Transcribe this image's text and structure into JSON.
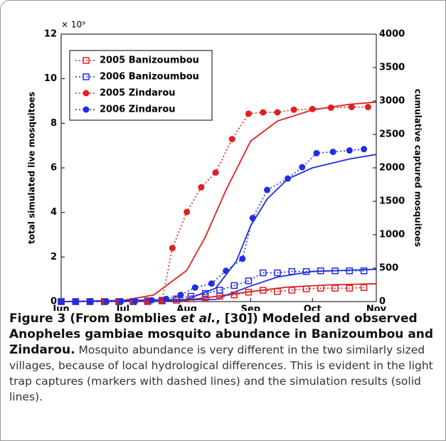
{
  "chart_data": {
    "type": "line",
    "y_multiplier": "× 10⁹",
    "ylabel": "total simulated live mosquitoes",
    "y2label": "cumulative captured mosquitoes",
    "xlim": [
      0,
      153
    ],
    "xticks": [
      {
        "value": 0,
        "label": "Jun"
      },
      {
        "value": 30,
        "label": "Jul"
      },
      {
        "value": 61,
        "label": "Aug"
      },
      {
        "value": 92,
        "label": "Sep"
      },
      {
        "value": 122,
        "label": "Oct"
      },
      {
        "value": 153,
        "label": "Nov"
      }
    ],
    "ylim": [
      0,
      12
    ],
    "yticks": [
      0,
      2,
      4,
      6,
      8,
      10,
      12
    ],
    "y2lim": [
      0,
      4000
    ],
    "y2ticks": [
      0,
      500,
      1000,
      1500,
      2000,
      2500,
      3000,
      3500,
      4000
    ],
    "legend": "upper left",
    "series": [
      {
        "name": "2005 Banizoumbou",
        "color": "#e02020",
        "marker": "square",
        "axis": "y2",
        "x": [
          0,
          7,
          14,
          21,
          28,
          35,
          42,
          49,
          56,
          63,
          70,
          77,
          84,
          91,
          98,
          105,
          112,
          119,
          126,
          133,
          140,
          147
        ],
        "values": [
          0,
          0,
          0,
          0,
          0,
          0,
          0,
          10,
          20,
          40,
          60,
          80,
          100,
          140,
          170,
          150,
          170,
          190,
          200,
          200,
          200,
          210
        ]
      },
      {
        "name": "2006 Banizoumbou",
        "color": "#1f2fe0",
        "marker": "square",
        "axis": "y2",
        "x": [
          0,
          7,
          14,
          21,
          28,
          35,
          42,
          49,
          56,
          63,
          70,
          77,
          84,
          91,
          98,
          105,
          112,
          119,
          126,
          133,
          140,
          147
        ],
        "values": [
          0,
          0,
          0,
          0,
          0,
          0,
          10,
          20,
          40,
          80,
          120,
          170,
          240,
          310,
          430,
          430,
          450,
          450,
          460,
          460,
          460,
          460
        ]
      },
      {
        "name": "2005 Zindarou",
        "color": "#e02020",
        "marker": "dot",
        "axis": "y2",
        "x": [
          0,
          7,
          14,
          21,
          28,
          35,
          42,
          49,
          54,
          61,
          68,
          75,
          83,
          91,
          98,
          105,
          113,
          122,
          131,
          141,
          149
        ],
        "values": [
          0,
          0,
          0,
          0,
          0,
          0,
          0,
          20,
          800,
          1340,
          1710,
          1930,
          2430,
          2810,
          2830,
          2830,
          2870,
          2880,
          2900,
          2910,
          2910
        ]
      },
      {
        "name": "2006 Zindarou",
        "color": "#1f2fe0",
        "marker": "dot",
        "axis": "y2",
        "x": [
          0,
          7,
          14,
          22,
          29,
          36,
          44,
          51,
          58,
          65,
          73,
          80,
          88,
          93,
          100,
          110,
          117,
          124,
          132,
          140,
          147
        ],
        "values": [
          0,
          0,
          0,
          0,
          0,
          10,
          20,
          40,
          100,
          210,
          270,
          460,
          640,
          1250,
          1670,
          1840,
          2010,
          2220,
          2240,
          2260,
          2280
        ]
      }
    ],
    "model_series": [
      {
        "color": "#e02020",
        "x": [
          0,
          30,
          45,
          61,
          70,
          80,
          92,
          105,
          122,
          140,
          153
        ],
        "values": [
          0,
          0.05,
          0.3,
          1.4,
          2.9,
          5.0,
          7.2,
          8.1,
          8.6,
          8.85,
          8.95
        ]
      },
      {
        "color": "#1f2fe0",
        "x": [
          0,
          61,
          75,
          85,
          92,
          100,
          110,
          122,
          140,
          153
        ],
        "values": [
          0,
          0.1,
          0.6,
          1.8,
          3.4,
          4.6,
          5.5,
          6.0,
          6.4,
          6.6
        ]
      },
      {
        "color": "#e02020",
        "x": [
          0,
          61,
          80,
          92,
          110,
          130,
          153
        ],
        "values": [
          0,
          0.05,
          0.3,
          0.45,
          0.65,
          0.75,
          0.8
        ]
      },
      {
        "color": "#1f2fe0",
        "x": [
          0,
          75,
          92,
          105,
          122,
          153
        ],
        "values": [
          0,
          0.1,
          0.7,
          1.1,
          1.35,
          1.45
        ]
      }
    ]
  },
  "caption": {
    "runs": [
      "Figure 3 (From Bomblies ",
      "et al.",
      ", [30]) Modeled and observed Anopheles gambiae mosquito abundance in Banizoumbou and Zindarou.",
      " Mosquito abundance is very different in the two similarly sized villages, because of local hydrological differences. This is evident in the light trap captures (markers with dashed lines) and the simulation results (solid lines)."
    ]
  }
}
